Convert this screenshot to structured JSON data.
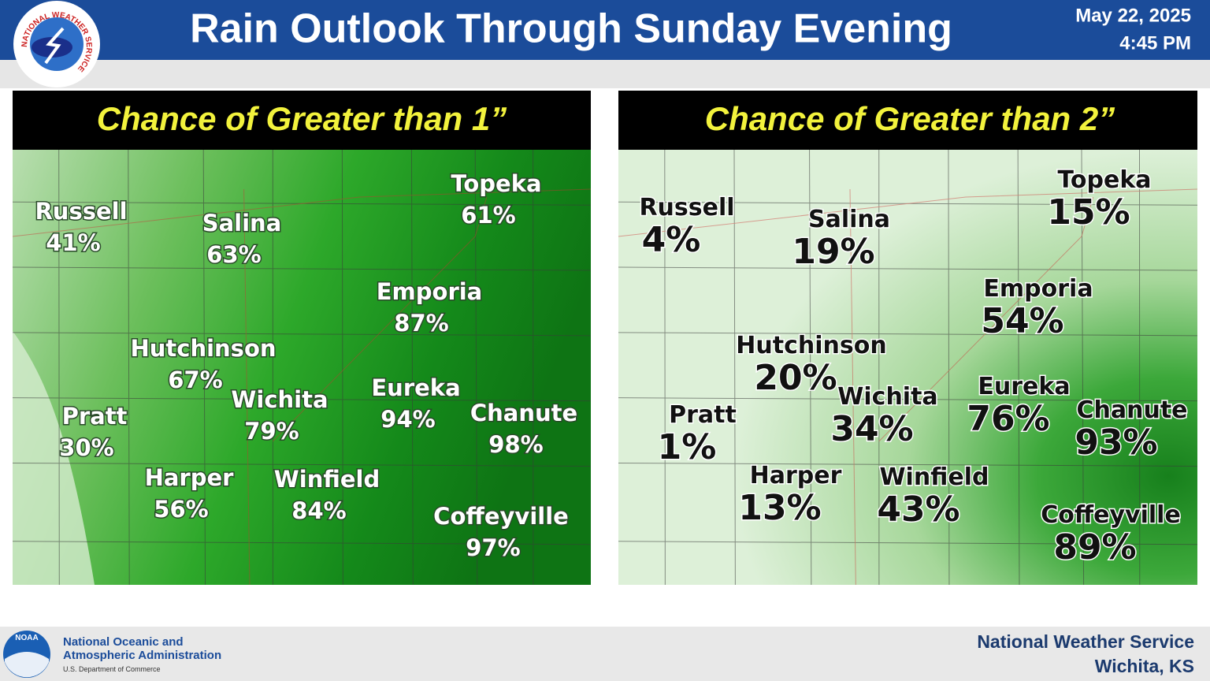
{
  "header": {
    "title": "Rain Outlook Through Sunday Evening",
    "date": "May 22, 2025",
    "time": "4:45 PM",
    "logo_text": "NATIONAL WEATHER SERVICE"
  },
  "panels": [
    {
      "title": "Chance of Greater than 1”",
      "cities": [
        {
          "name": "Russell",
          "chance": "41%"
        },
        {
          "name": "Salina",
          "chance": "63%"
        },
        {
          "name": "Topeka",
          "chance": "61%"
        },
        {
          "name": "Emporia",
          "chance": "87%"
        },
        {
          "name": "Hutchinson",
          "chance": "67%"
        },
        {
          "name": "Wichita",
          "chance": "79%"
        },
        {
          "name": "Eureka",
          "chance": "94%"
        },
        {
          "name": "Chanute",
          "chance": "98%"
        },
        {
          "name": "Pratt",
          "chance": "30%"
        },
        {
          "name": "Harper",
          "chance": "56%"
        },
        {
          "name": "Winfield",
          "chance": "84%"
        },
        {
          "name": "Coffeyville",
          "chance": "97%"
        }
      ]
    },
    {
      "title": "Chance of Greater than 2”",
      "cities": [
        {
          "name": "Russell",
          "chance": "4%"
        },
        {
          "name": "Salina",
          "chance": "19%"
        },
        {
          "name": "Topeka",
          "chance": "15%"
        },
        {
          "name": "Emporia",
          "chance": "54%"
        },
        {
          "name": "Hutchinson",
          "chance": "20%"
        },
        {
          "name": "Wichita",
          "chance": "34%"
        },
        {
          "name": "Eureka",
          "chance": "76%"
        },
        {
          "name": "Chanute",
          "chance": "93%"
        },
        {
          "name": "Pratt",
          "chance": "1%"
        },
        {
          "name": "Harper",
          "chance": "13%"
        },
        {
          "name": "Winfield",
          "chance": "43%"
        },
        {
          "name": "Coffeyville",
          "chance": "89%"
        }
      ]
    }
  ],
  "footer": {
    "agency_line1": "National Oceanic and",
    "agency_line2": "Atmospheric Administration",
    "department": "U.S. Department of Commerce",
    "office": "National Weather Service",
    "location": "Wichita, KS",
    "noaa": "NOAA"
  }
}
